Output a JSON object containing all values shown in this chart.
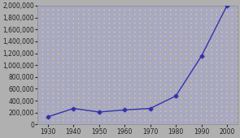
{
  "years": [
    1930,
    1940,
    1950,
    1960,
    1970,
    1980,
    1990,
    2000
  ],
  "values": [
    130000,
    270000,
    210000,
    245000,
    270000,
    480000,
    1150000,
    2000000
  ],
  "line_color": "#3333aa",
  "marker": "D",
  "marker_size": 2.5,
  "fig_background": "#b0b0b0",
  "axes_background": "#a8a8c0",
  "dot_color_yellow": "#e8e840",
  "dot_color_white": "#d8d8e8",
  "ylim": [
    0,
    2000000
  ],
  "ytick_step": 200000,
  "xlim": [
    1926,
    2004
  ],
  "xticks": [
    1930,
    1940,
    1950,
    1960,
    1970,
    1980,
    1990,
    2000
  ],
  "figsize": [
    2.95,
    1.7
  ],
  "dpi": 100
}
